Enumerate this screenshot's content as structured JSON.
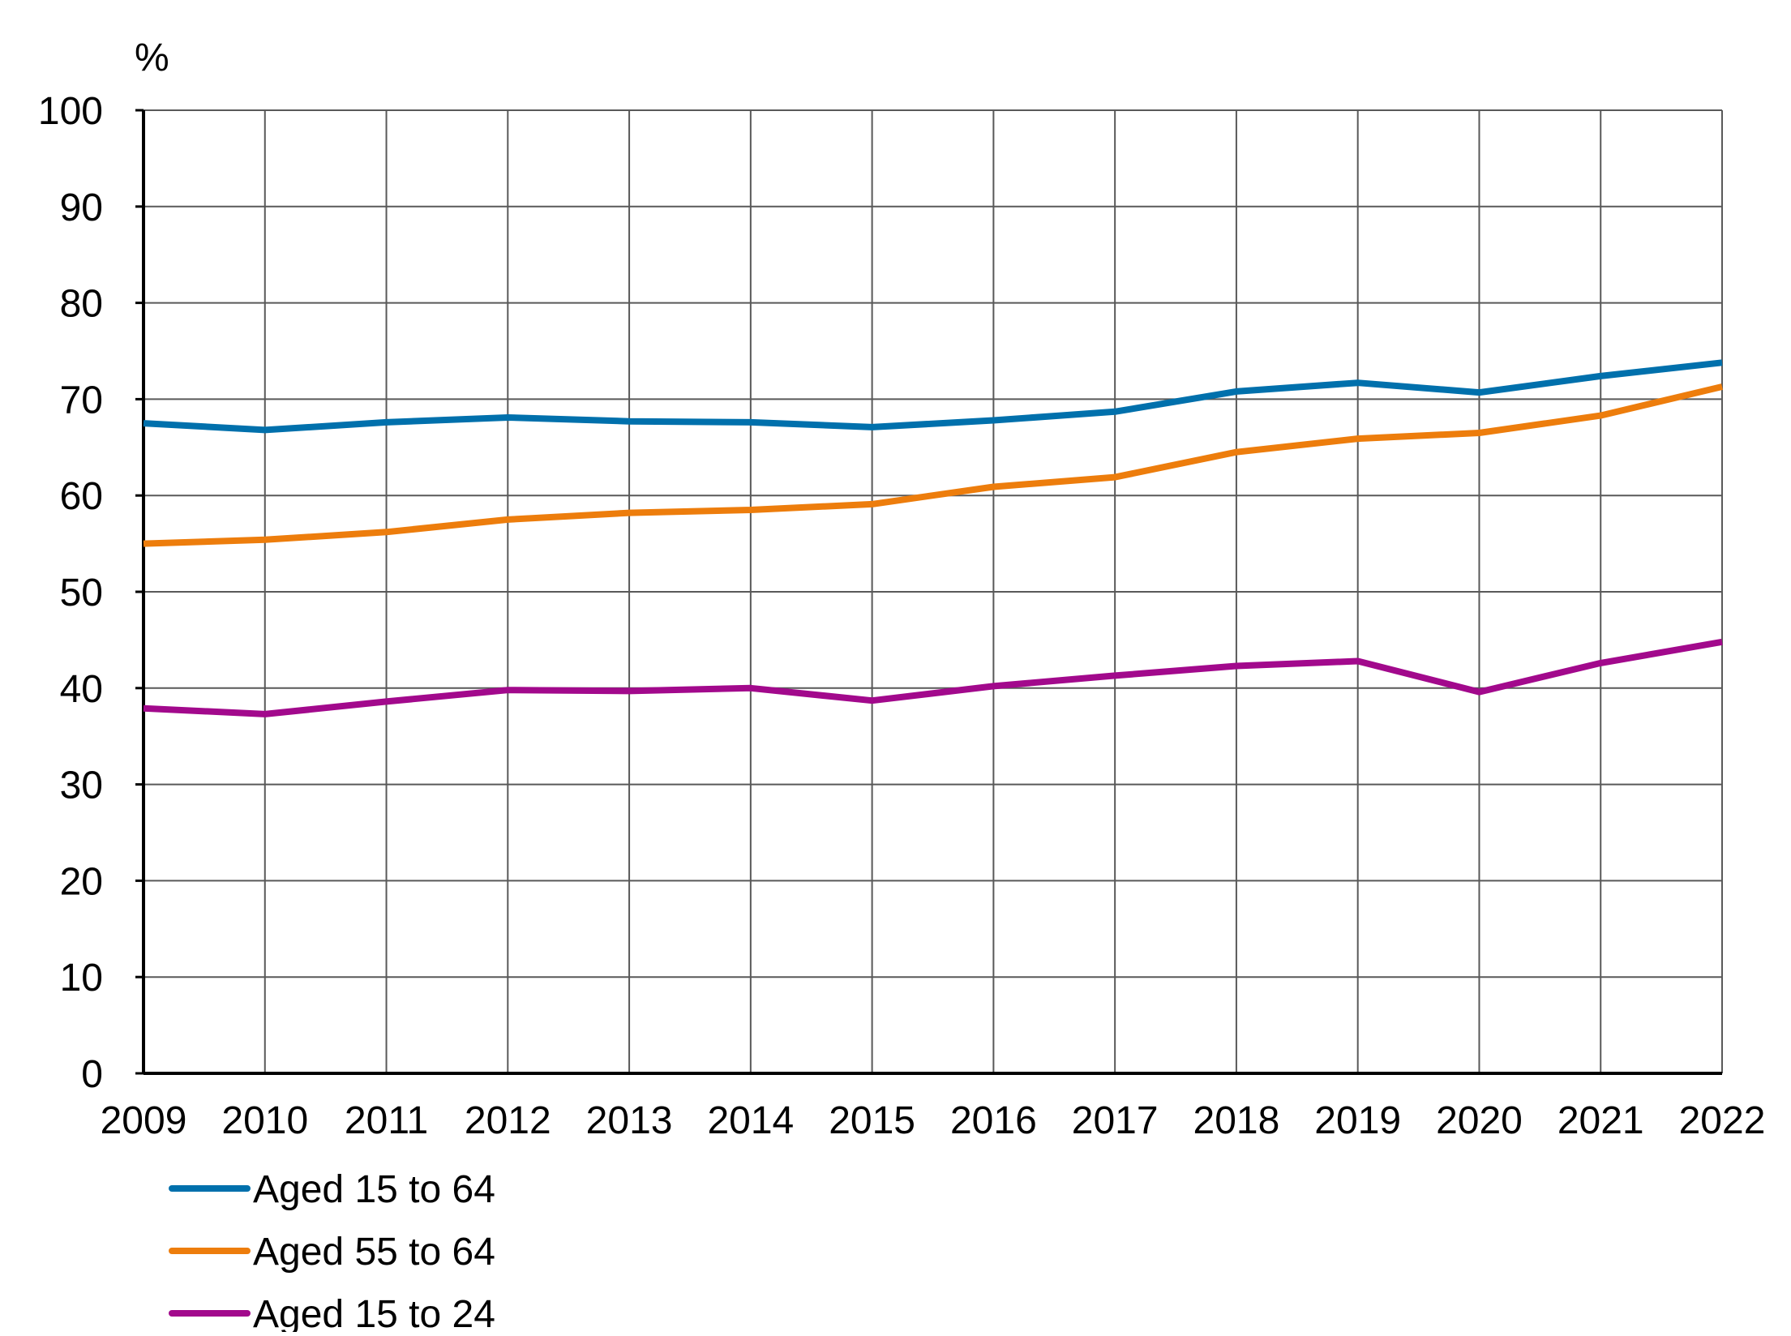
{
  "chart_data": {
    "type": "line",
    "ylabel": "%",
    "ylim": [
      0,
      100
    ],
    "yticks": [
      0,
      10,
      20,
      30,
      40,
      50,
      60,
      70,
      80,
      90,
      100
    ],
    "x": [
      "2009",
      "2010",
      "2011",
      "2012",
      "2013",
      "2014",
      "2015",
      "2016",
      "2017",
      "2018",
      "2019",
      "2020",
      "2021",
      "2022"
    ],
    "grid": true,
    "legend_position": "bottom-left",
    "series": [
      {
        "name": "Aged 15 to 64",
        "color": "#0070ac",
        "values": [
          67.5,
          66.8,
          67.6,
          68.1,
          67.7,
          67.6,
          67.1,
          67.8,
          68.7,
          70.8,
          71.7,
          70.7,
          72.4,
          73.8
        ]
      },
      {
        "name": "Aged 55 to 64",
        "color": "#ed7d0c",
        "values": [
          55.0,
          55.4,
          56.2,
          57.5,
          58.2,
          58.5,
          59.1,
          60.9,
          61.9,
          64.5,
          65.9,
          66.5,
          68.3,
          71.3
        ]
      },
      {
        "name": "Aged 15 to 24",
        "color": "#a2098c",
        "values": [
          37.9,
          37.3,
          38.6,
          39.8,
          39.7,
          40.0,
          38.7,
          40.2,
          41.3,
          42.3,
          42.8,
          39.6,
          42.6,
          44.8
        ]
      }
    ]
  }
}
